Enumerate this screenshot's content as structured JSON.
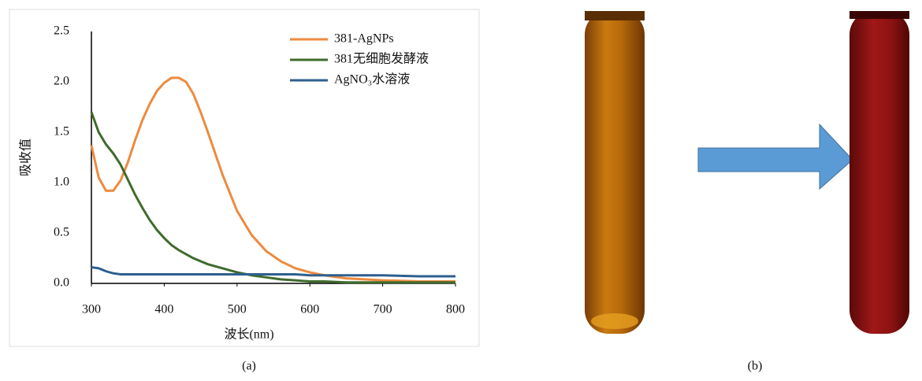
{
  "chart_data": {
    "type": "line",
    "xlabel": "波长(nm)",
    "ylabel": "吸收值",
    "x": [
      300,
      310,
      320,
      330,
      340,
      350,
      360,
      370,
      380,
      390,
      400,
      410,
      420,
      430,
      440,
      450,
      460,
      480,
      500,
      520,
      540,
      560,
      580,
      600,
      620,
      650,
      700,
      750,
      800
    ],
    "series": [
      {
        "name": "381-AgNPs",
        "color": "#ed8a3f",
        "values": [
          1.37,
          1.05,
          0.92,
          0.92,
          1.02,
          1.2,
          1.42,
          1.62,
          1.78,
          1.91,
          1.99,
          2.04,
          2.04,
          2.0,
          1.88,
          1.7,
          1.5,
          1.08,
          0.72,
          0.48,
          0.32,
          0.22,
          0.15,
          0.11,
          0.08,
          0.05,
          0.03,
          0.02,
          0.02
        ]
      },
      {
        "name": "381无细胞发酵液",
        "color": "#3f6b2b",
        "values": [
          1.7,
          1.5,
          1.38,
          1.29,
          1.18,
          1.03,
          0.88,
          0.75,
          0.63,
          0.53,
          0.45,
          0.38,
          0.33,
          0.29,
          0.25,
          0.22,
          0.19,
          0.15,
          0.11,
          0.08,
          0.06,
          0.04,
          0.03,
          0.02,
          0.02,
          0.01,
          0.01,
          0.01,
          0.01
        ]
      },
      {
        "name": "AgNO₃水溶液",
        "color": "#2e5f8f",
        "values": [
          0.16,
          0.15,
          0.12,
          0.1,
          0.09,
          0.09,
          0.09,
          0.09,
          0.09,
          0.09,
          0.09,
          0.09,
          0.09,
          0.09,
          0.09,
          0.09,
          0.09,
          0.09,
          0.09,
          0.09,
          0.09,
          0.09,
          0.09,
          0.08,
          0.08,
          0.08,
          0.08,
          0.07,
          0.07
        ]
      }
    ],
    "xlim": [
      300,
      800
    ],
    "xticks": [
      300,
      400,
      500,
      600,
      700,
      800
    ],
    "ylim": [
      0,
      2.5
    ],
    "yticks": [
      {
        "value": 0,
        "label": "0.0"
      },
      0.5,
      {
        "value": 1,
        "label": "1.0"
      },
      1.5,
      {
        "value": 2,
        "label": "2.0"
      },
      2.5
    ],
    "grid": false,
    "legend": "top-right"
  },
  "captions": [
    "(a)",
    "(b)"
  ]
}
